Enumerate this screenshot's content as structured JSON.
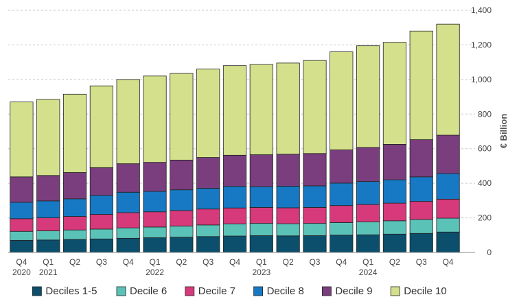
{
  "chart_data": {
    "type": "bar",
    "stacked": true,
    "title": "",
    "xlabel": "",
    "ylabel": "€ Billion",
    "ylim": [
      0,
      1400
    ],
    "yticks": [
      "0",
      "200",
      "400",
      "600",
      "800",
      "1,000",
      "1,200",
      "1,400"
    ],
    "grid": "horizontal dashed",
    "legend_position": "bottom",
    "categories": [
      {
        "quarter": "Q4",
        "year": "2020"
      },
      {
        "quarter": "Q1",
        "year": "2021"
      },
      {
        "quarter": "Q2",
        "year": ""
      },
      {
        "quarter": "Q3",
        "year": ""
      },
      {
        "quarter": "Q4",
        "year": ""
      },
      {
        "quarter": "Q1",
        "year": "2022"
      },
      {
        "quarter": "Q2",
        "year": ""
      },
      {
        "quarter": "Q3",
        "year": ""
      },
      {
        "quarter": "Q4",
        "year": ""
      },
      {
        "quarter": "Q1",
        "year": "2023"
      },
      {
        "quarter": "Q2",
        "year": ""
      },
      {
        "quarter": "Q3",
        "year": ""
      },
      {
        "quarter": "Q4",
        "year": ""
      },
      {
        "quarter": "Q1",
        "year": "2024"
      },
      {
        "quarter": "Q2",
        "year": ""
      },
      {
        "quarter": "Q3",
        "year": ""
      },
      {
        "quarter": "Q4",
        "year": ""
      }
    ],
    "series": [
      {
        "name": "Deciles 1-5",
        "color": "#0b4f6c",
        "values": [
          70,
          72,
          75,
          78,
          82,
          85,
          88,
          92,
          95,
          97,
          96,
          97,
          100,
          102,
          106,
          110,
          118
        ]
      },
      {
        "name": "Decile 6",
        "color": "#5bc2b8",
        "values": [
          52,
          53,
          55,
          57,
          60,
          62,
          64,
          67,
          70,
          71,
          70,
          71,
          73,
          75,
          77,
          80,
          80
        ]
      },
      {
        "name": "Decile 7",
        "color": "#d63a7a",
        "values": [
          73,
          75,
          78,
          85,
          88,
          88,
          90,
          92,
          92,
          92,
          92,
          92,
          98,
          100,
          102,
          105,
          110
        ]
      },
      {
        "name": "Decile 8",
        "color": "#1779c4",
        "values": [
          95,
          98,
          102,
          110,
          118,
          118,
          120,
          120,
          125,
          120,
          125,
          125,
          130,
          133,
          135,
          142,
          148
        ]
      },
      {
        "name": "Decile 9",
        "color": "#7a3e7e",
        "values": [
          147,
          147,
          152,
          160,
          165,
          168,
          172,
          178,
          180,
          185,
          185,
          187,
          192,
          197,
          205,
          215,
          222
        ]
      },
      {
        "name": "Decile 10",
        "color": "#d4e08c",
        "values": [
          433,
          440,
          453,
          473,
          487,
          499,
          501,
          511,
          518,
          522,
          527,
          538,
          567,
          588,
          590,
          628,
          642
        ]
      }
    ]
  }
}
